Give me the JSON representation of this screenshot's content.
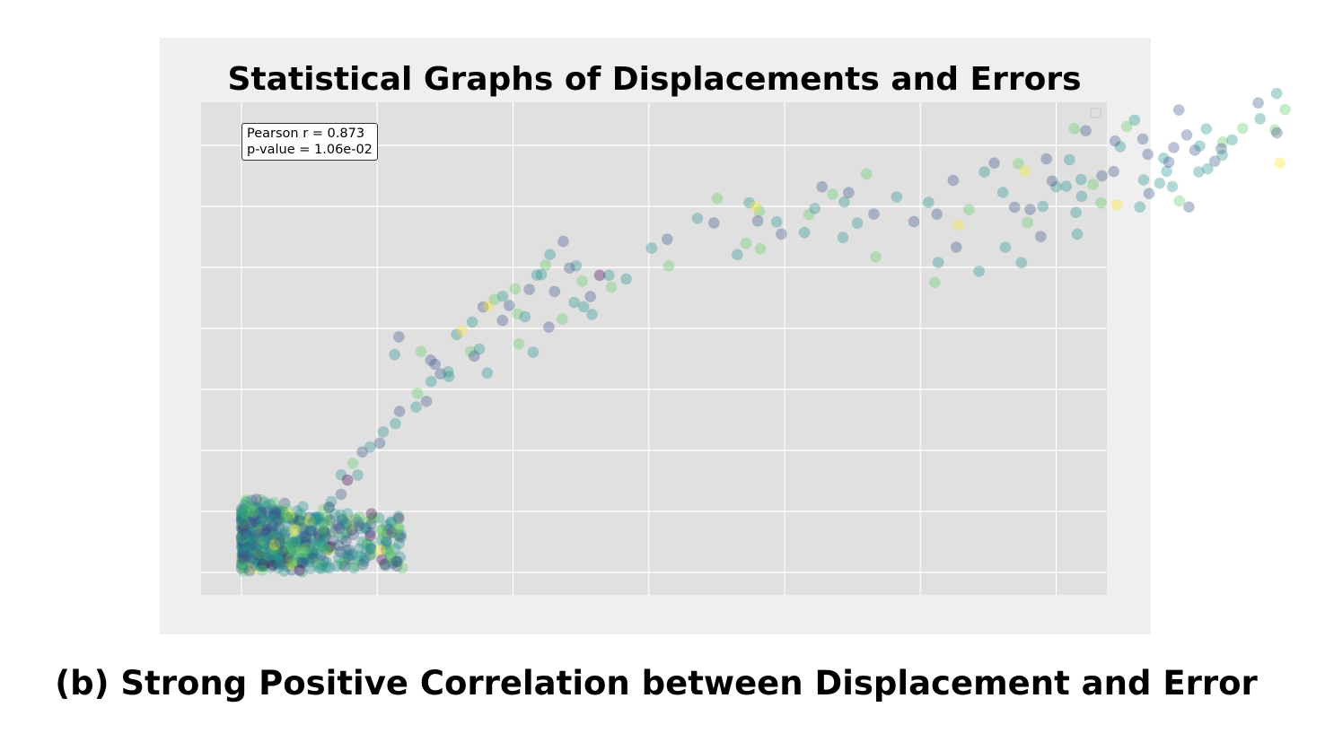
{
  "caption": "(b) Strong Positive Correlation between Displacement and Error",
  "colors": {
    "panel_background": "#efefef",
    "plot_background": "#e0e0e0",
    "grid": "#ffffff",
    "viridis_palette": [
      "#440154",
      "#3b528b",
      "#21918c",
      "#5ec962",
      "#fde725"
    ]
  },
  "chart_data": {
    "type": "scatter",
    "title": "Statistical Graphs of Displacements and Errors",
    "xlabel": "",
    "ylabel": "",
    "grid": true,
    "legend": "empty legend box at top-right",
    "annotation": {
      "lines": [
        "Pearson r = 0.873",
        "p-value = 1.06e-02"
      ],
      "position": "top-left"
    },
    "marker_style": {
      "alpha": 0.35,
      "colormap": "viridis"
    },
    "points": [
      [
        1.53,
        0.26,
        1
      ],
      [
        1.57,
        0.04,
        2
      ],
      [
        1.4,
        0.98,
        1
      ],
      [
        1.27,
        1.86,
        1
      ],
      [
        1.16,
        1.75,
        2
      ],
      [
        1.59,
        1.48,
        2
      ],
      [
        1.75,
        0.73,
        3
      ],
      [
        1.81,
        0.45,
        3
      ],
      [
        1.68,
        1.79,
        2
      ],
      [
        1.96,
        1.39,
        4
      ],
      [
        2.29,
        0.64,
        3
      ],
      [
        2.37,
        0.98,
        1
      ],
      [
        2.4,
        0.81,
        3
      ],
      [
        2.23,
        0.02,
        2
      ],
      [
        2.26,
        0.31,
        1
      ],
      [
        2.14,
        0.07,
        0
      ],
      [
        2.62,
        0.46,
        1
      ],
      [
        2.54,
        0.13,
        2
      ],
      [
        2.84,
        1.28,
        1
      ],
      [
        3.11,
        1.28,
        2
      ],
      [
        2.96,
        1.43,
        3
      ],
      [
        3.61,
        1.46,
        1
      ],
      [
        3.86,
        1.61,
        2
      ],
      [
        4.02,
        1.45,
        3
      ],
      [
        3.67,
        2.56,
        1
      ],
      [
        3.31,
        2.32,
        2
      ],
      [
        3.23,
        2.14,
        1
      ],
      [
        3.67,
        3.2,
        2
      ],
      [
        3.9,
        3.03,
        0
      ],
      [
        4.28,
        3.19,
        2
      ],
      [
        4.1,
        3.57,
        3
      ],
      [
        4.45,
        3.95,
        1
      ],
      [
        4.74,
        4.11,
        2
      ],
      [
        5.09,
        4.24,
        1
      ],
      [
        5.22,
        4.61,
        2
      ],
      [
        5.67,
        4.88,
        2
      ],
      [
        5.82,
        5.28,
        1
      ],
      [
        6.43,
        5.42,
        2
      ],
      [
        6.81,
        5.61,
        1
      ],
      [
        6.48,
        5.87,
        3
      ],
      [
        6.99,
        6.26,
        2
      ],
      [
        7.33,
        6.51,
        1
      ],
      [
        7.61,
        6.58,
        2
      ],
      [
        7.13,
        6.82,
        1
      ],
      [
        8.44,
        7.24,
        3
      ],
      [
        8.76,
        7.32,
        2
      ],
      [
        8.5,
        8.21,
        2
      ],
      [
        8.9,
        8.7,
        1
      ],
      [
        9.1,
        8.73,
        4
      ],
      [
        9.32,
        8.95,
        3
      ],
      [
        9.62,
        9.05,
        2
      ],
      [
        9.86,
        8.75,
        1
      ],
      [
        10.08,
        9.3,
        3
      ],
      [
        10.17,
        8.47,
        3
      ],
      [
        10.44,
        8.38,
        2
      ],
      [
        10.6,
        9.28,
        1
      ],
      [
        10.88,
        9.75,
        2
      ],
      [
        11.2,
        10.07,
        3
      ],
      [
        11.36,
        10.42,
        2
      ],
      [
        11.85,
        10.85,
        1
      ],
      [
        5.64,
        7.14,
        2
      ],
      [
        5.8,
        7.72,
        1
      ],
      [
        6.61,
        7.24,
        3
      ],
      [
        6.97,
        6.96,
        1
      ],
      [
        7.64,
        6.42,
        2
      ],
      [
        7.92,
        7.8,
        2
      ],
      [
        8.12,
        7.93,
        4
      ],
      [
        8.57,
        7.09,
        1
      ],
      [
        9.05,
        6.54,
        2
      ],
      [
        9.61,
        8.26,
        1
      ],
      [
        10.21,
        7.49,
        3
      ],
      [
        10.74,
        7.22,
        2
      ],
      [
        11.32,
        8.04,
        1
      ],
      [
        11.81,
        8.31,
        3
      ],
      [
        11.04,
        9.76,
        2
      ],
      [
        11.53,
        9.21,
        1
      ],
      [
        12.25,
        8.85,
        2
      ],
      [
        12.6,
        8.71,
        2
      ],
      [
        12.85,
        9.04,
        1
      ],
      [
        12.91,
        8.46,
        2
      ],
      [
        12.55,
        9.55,
        3
      ],
      [
        12.32,
        10.05,
        2
      ],
      [
        12.08,
        9.98,
        1
      ],
      [
        13.53,
        9.74,
        2
      ],
      [
        13.62,
        9.35,
        3
      ],
      [
        13.19,
        9.74,
        0
      ],
      [
        14.17,
        9.62,
        2
      ],
      [
        15.1,
        10.63,
        2
      ],
      [
        15.74,
        10.05,
        3
      ],
      [
        15.68,
        10.92,
        1
      ],
      [
        16.79,
        11.61,
        2
      ],
      [
        17.52,
        12.26,
        3
      ],
      [
        17.4,
        11.46,
        1
      ],
      [
        18.7,
        12.12,
        2
      ],
      [
        19.07,
        11.84,
        3
      ],
      [
        19.01,
        11.52,
        1
      ],
      [
        18.26,
        10.42,
        2
      ],
      [
        18.58,
        10.79,
        3
      ],
      [
        19.11,
        10.61,
        3
      ],
      [
        18.94,
        11.99,
        4
      ],
      [
        19.71,
        11.49,
        2
      ],
      [
        19.88,
        11.09,
        1
      ],
      [
        20.73,
        11.14,
        2
      ],
      [
        20.9,
        11.73,
        3
      ],
      [
        21.11,
        11.93,
        2
      ],
      [
        21.38,
        12.64,
        1
      ],
      [
        21.77,
        12.4,
        3
      ],
      [
        22.2,
        12.14,
        2
      ],
      [
        22.36,
        12.45,
        1
      ],
      [
        23.01,
        13.06,
        3
      ],
      [
        22.68,
        11.45,
        2
      ],
      [
        23.29,
        11.75,
        1
      ],
      [
        24.13,
        12.31,
        2
      ],
      [
        22.15,
        10.98,
        2
      ],
      [
        23.36,
        10.34,
        3
      ],
      [
        24.76,
        11.5,
        1
      ],
      [
        25.3,
        12.13,
        2
      ],
      [
        25.61,
        11.74,
        1
      ],
      [
        26.21,
        12.85,
        1
      ],
      [
        26.79,
        11.89,
        3
      ],
      [
        27.36,
        13.13,
        2
      ],
      [
        28.04,
        12.46,
        2
      ],
      [
        28.47,
        11.97,
        1
      ],
      [
        28.95,
        11.47,
        3
      ],
      [
        28.13,
        10.66,
        2
      ],
      [
        27.16,
        9.87,
        2
      ],
      [
        26.32,
        10.66,
        1
      ],
      [
        25.66,
        10.16,
        2
      ],
      [
        25.53,
        9.51,
        3
      ],
      [
        29.64,
        13.56,
        1
      ],
      [
        26.41,
        11.39,
        4
      ],
      [
        28.61,
        13.4,
        3
      ],
      [
        27.72,
        13.42,
        1
      ],
      [
        29.43,
        11.01,
        1
      ],
      [
        29.04,
        11.9,
        1
      ],
      [
        28.72,
        10.15,
        2
      ],
      [
        28.86,
        13.16,
        4
      ],
      [
        30.0,
        12.64,
        2
      ],
      [
        29.51,
        12.0,
        2
      ],
      [
        30.37,
        12.66,
        2
      ],
      [
        30.94,
        12.33,
        2
      ],
      [
        31.36,
        12.72,
        3
      ],
      [
        30.49,
        13.53,
        2
      ],
      [
        29.85,
        12.83,
        1
      ],
      [
        31.69,
        13.0,
        1
      ],
      [
        32.12,
        13.14,
        1
      ],
      [
        32.36,
        13.96,
        2
      ],
      [
        32.6,
        14.62,
        3
      ],
      [
        32.89,
        14.83,
        2
      ],
      [
        30.67,
        14.55,
        3
      ],
      [
        32.17,
        14.14,
        1
      ],
      [
        31.09,
        14.48,
        1
      ],
      [
        33.19,
        14.21,
        1
      ],
      [
        33.38,
        13.71,
        1
      ],
      [
        33.96,
        13.58,
        2
      ],
      [
        34.33,
        13.93,
        1
      ],
      [
        34.81,
        14.34,
        1
      ],
      [
        35.11,
        13.84,
        1
      ],
      [
        35.29,
        13.98,
        2
      ],
      [
        35.53,
        14.54,
        2
      ],
      [
        35.84,
        13.48,
        1
      ],
      [
        36.14,
        14.11,
        3
      ],
      [
        36.87,
        14.56,
        3
      ],
      [
        37.51,
        14.87,
        2
      ],
      [
        38.12,
        15.7,
        2
      ],
      [
        38.06,
        14.51,
        3
      ],
      [
        38.13,
        14.41,
        1
      ],
      [
        38.43,
        15.17,
        3
      ],
      [
        38.23,
        13.42,
        4
      ],
      [
        37.44,
        15.39,
        1
      ],
      [
        36.08,
        13.89,
        1
      ],
      [
        34.52,
        15.16,
        1
      ],
      [
        36.48,
        14.18,
        2
      ],
      [
        35.58,
        13.23,
        2
      ],
      [
        34.07,
        13.15,
        2
      ],
      [
        33.22,
        12.87,
        2
      ],
      [
        32.24,
        12.05,
        4
      ],
      [
        33.08,
        11.98,
        2
      ],
      [
        34.28,
        12.65,
        2
      ],
      [
        35.25,
        13.13,
        2
      ],
      [
        36.12,
        13.68,
        2
      ],
      [
        34.54,
        12.17,
        3
      ],
      [
        34.89,
        11.98,
        1
      ],
      [
        33.81,
        12.76,
        2
      ],
      [
        33.42,
        12.42,
        1
      ],
      [
        31.66,
        12.11,
        3
      ],
      [
        30.73,
        11.8,
        2
      ],
      [
        30.92,
        12.88,
        2
      ],
      [
        30.78,
        11.09,
        2
      ],
      [
        34.15,
        13.45,
        1
      ]
    ],
    "dense_cluster": {
      "x_range": [
        0,
        6
      ],
      "y_range": [
        0,
        2.2
      ],
      "count": 520
    }
  }
}
